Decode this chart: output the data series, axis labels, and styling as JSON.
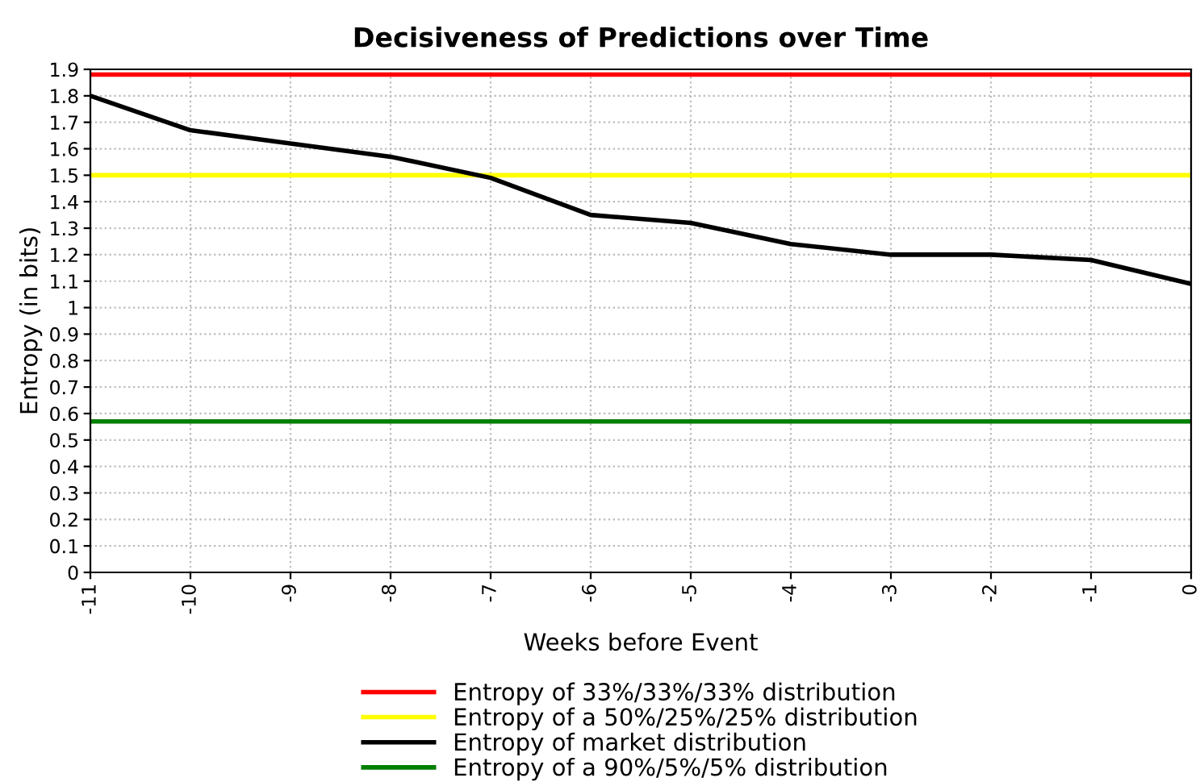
{
  "chart_data": {
    "type": "line",
    "title": "Decisiveness of Predictions over Time",
    "xlabel": "Weeks before Event",
    "ylabel": "Entropy (in bits)",
    "x": [
      -11,
      -10,
      -9,
      -8,
      -7,
      -6,
      -5,
      -4,
      -3,
      -2,
      -1,
      0
    ],
    "series": [
      {
        "name": "Entropy of 33%/33%/33% distribution",
        "color": "#ff0000",
        "values": [
          1.88,
          1.88,
          1.88,
          1.88,
          1.88,
          1.88,
          1.88,
          1.88,
          1.88,
          1.88,
          1.88,
          1.88
        ]
      },
      {
        "name": "Entropy of a 50%/25%/25% distribution",
        "color": "#ffff00",
        "values": [
          1.5,
          1.5,
          1.5,
          1.5,
          1.5,
          1.5,
          1.5,
          1.5,
          1.5,
          1.5,
          1.5,
          1.5
        ]
      },
      {
        "name": "Entropy of market distribution",
        "color": "#000000",
        "values": [
          1.8,
          1.67,
          1.62,
          1.57,
          1.49,
          1.35,
          1.32,
          1.24,
          1.2,
          1.2,
          1.18,
          1.09
        ]
      },
      {
        "name": "Entropy of a 90%/5%/5% distribution",
        "color": "#008000",
        "values": [
          0.57,
          0.57,
          0.57,
          0.57,
          0.57,
          0.57,
          0.57,
          0.57,
          0.57,
          0.57,
          0.57,
          0.57
        ]
      }
    ],
    "xlim": [
      -11,
      0
    ],
    "xticks": [
      -11,
      -10,
      -9,
      -8,
      -7,
      -6,
      -5,
      -4,
      -3,
      -2,
      -1,
      0
    ],
    "ylim": [
      0,
      1.9
    ],
    "yticks": [
      0,
      0.1,
      0.2,
      0.3,
      0.4,
      0.5,
      0.6,
      0.7,
      0.8,
      0.9,
      1,
      1.1,
      1.2,
      1.3,
      1.4,
      1.5,
      1.6,
      1.7,
      1.8,
      1.9
    ],
    "grid": true,
    "legend": "bottom",
    "marker": "none",
    "line_style": "solid"
  }
}
